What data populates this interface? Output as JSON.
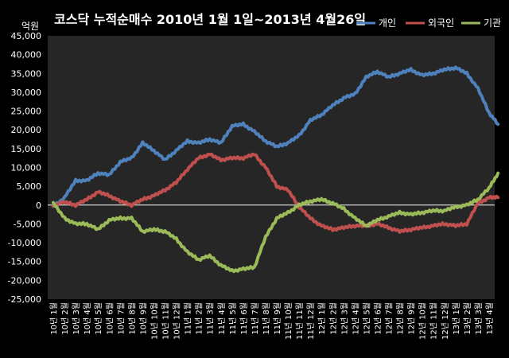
{
  "chart_data": {
    "type": "line",
    "title": "코스닥  누적순매수 2010년 1월 1일~2013년 4월26일",
    "ylabel": "억원",
    "xlabel": "",
    "ylim": [
      -25000,
      45000
    ],
    "yticks": [
      45000,
      40000,
      35000,
      30000,
      25000,
      20000,
      15000,
      10000,
      5000,
      0,
      -5000,
      -10000,
      -15000,
      -20000,
      -25000
    ],
    "ytick_labels": [
      "45,000",
      "40,000",
      "35,000",
      "30,000",
      "25,000",
      "20,000",
      "15,000",
      "10,000",
      "5,000",
      "0",
      "-5,000",
      "-10,000",
      "-15,000",
      "-20,000",
      "-25,000"
    ],
    "xtick_labels": [
      "10년 1월",
      "10년 2월",
      "10년 3월",
      "10년 4월",
      "10년 5월",
      "10년 6월",
      "10년 7월",
      "10년 8월",
      "10년 9월",
      "10년 10월",
      "10년 11월",
      "10년 12월",
      "11년 1월",
      "11년 2월",
      "11년 3월",
      "11년 4월",
      "11년 5월",
      "11년 6월",
      "11년 7월",
      "11년 8월",
      "11년 9월",
      "11년 10월",
      "11년 11월",
      "11년 12월",
      "12년 1월",
      "12년 2월",
      "12년 3월",
      "12년 4월",
      "12년 5월",
      "12년 6월",
      "12년 7월",
      "12년 8월",
      "12년 9월",
      "12년 10월",
      "12년 11월",
      "12년 12월",
      "13년 1월",
      "13년 2월",
      "13년 3월",
      "13년 4월"
    ],
    "legend_position": "top-right",
    "grid": false,
    "series": [
      {
        "name": "개인",
        "color": "#4f81bd",
        "x": [
          0,
          1,
          2,
          3,
          4,
          5,
          6,
          7,
          8,
          9,
          10,
          11,
          12,
          13,
          14,
          15,
          16,
          17,
          18,
          19,
          20,
          21,
          22,
          23,
          24,
          25,
          26,
          27,
          28,
          29,
          30,
          31,
          32,
          33,
          34,
          35,
          36,
          37,
          38,
          39,
          39.8
        ],
        "values": [
          -500,
          2000,
          6500,
          6500,
          8500,
          8000,
          11500,
          12500,
          16500,
          14500,
          12000,
          14500,
          17000,
          16500,
          17500,
          16500,
          21000,
          21500,
          19500,
          17000,
          15500,
          16500,
          18500,
          22500,
          24000,
          26500,
          28500,
          29500,
          34000,
          35500,
          34000,
          35000,
          36000,
          34500,
          35000,
          36000,
          36500,
          35000,
          31000,
          24500,
          21500
        ]
      },
      {
        "name": "외국인",
        "color": "#c0504d",
        "x": [
          0,
          1,
          2,
          3,
          4,
          5,
          6,
          7,
          8,
          9,
          10,
          11,
          12,
          13,
          14,
          15,
          16,
          17,
          18,
          19,
          20,
          21,
          22,
          23,
          24,
          25,
          26,
          27,
          28,
          29,
          30,
          31,
          32,
          33,
          34,
          35,
          36,
          37,
          38,
          39,
          39.8
        ],
        "values": [
          0,
          800,
          0,
          1500,
          3500,
          2500,
          1000,
          0,
          1500,
          2500,
          4000,
          6000,
          9500,
          12500,
          13500,
          12000,
          12500,
          12500,
          13500,
          10000,
          5000,
          4000,
          -500,
          -3500,
          -5500,
          -6500,
          -6000,
          -5500,
          -5500,
          -5000,
          -6000,
          -7000,
          -6500,
          -6000,
          -5500,
          -5000,
          -5500,
          -5000,
          500,
          2000,
          2000
        ]
      },
      {
        "name": "기관",
        "color": "#9bbb59",
        "x": [
          0,
          1,
          2,
          3,
          4,
          5,
          6,
          7,
          8,
          9,
          10,
          11,
          12,
          13,
          14,
          15,
          16,
          17,
          18,
          19,
          20,
          21,
          22,
          23,
          24,
          25,
          26,
          27,
          28,
          29,
          30,
          31,
          32,
          33,
          34,
          35,
          36,
          37,
          38,
          39,
          39.8
        ],
        "values": [
          500,
          -3500,
          -5000,
          -5000,
          -6500,
          -4000,
          -3500,
          -3500,
          -7000,
          -6500,
          -7000,
          -9000,
          -12500,
          -14500,
          -13500,
          -16000,
          -17500,
          -17000,
          -16500,
          -8500,
          -3500,
          -2000,
          0,
          1000,
          1500,
          500,
          -1000,
          -3500,
          -5500,
          -4000,
          -3000,
          -2000,
          -2500,
          -2000,
          -1500,
          -1500,
          -500,
          0,
          1500,
          4500,
          8500
        ]
      }
    ]
  }
}
